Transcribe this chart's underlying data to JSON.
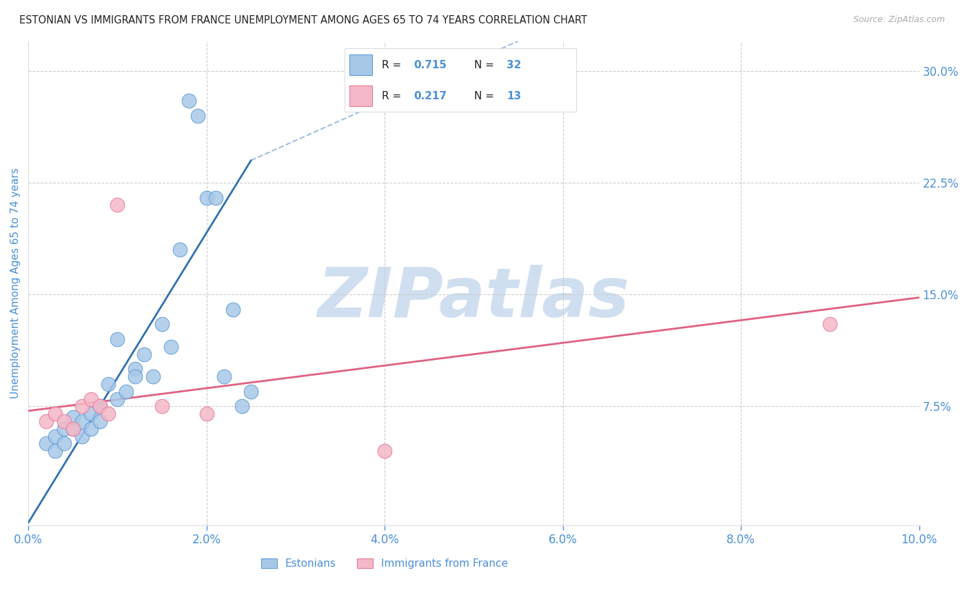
{
  "title": "ESTONIAN VS IMMIGRANTS FROM FRANCE UNEMPLOYMENT AMONG AGES 65 TO 74 YEARS CORRELATION CHART",
  "source": "Source: ZipAtlas.com",
  "ylabel": "Unemployment Among Ages 65 to 74 years",
  "xlim": [
    0.0,
    0.1
  ],
  "ylim": [
    -0.005,
    0.32
  ],
  "xticks": [
    0.0,
    0.02,
    0.04,
    0.06,
    0.08,
    0.1
  ],
  "yticks_right": [
    0.075,
    0.15,
    0.225,
    0.3
  ],
  "ytick_labels_right": [
    "7.5%",
    "15.0%",
    "22.5%",
    "30.0%"
  ],
  "xtick_labels": [
    "0.0%",
    "2.0%",
    "4.0%",
    "6.0%",
    "8.0%",
    "10.0%"
  ],
  "color_blue": "#a8c8e8",
  "color_blue_line": "#5b9bd5",
  "color_pink": "#f4b8c8",
  "color_pink_line": "#e87898",
  "color_trend_blue": "#3070b0",
  "color_trend_pink": "#e06080",
  "color_axis_labels": "#4a90d9",
  "color_grid": "#cccccc",
  "watermark_color": "#d0dff0",
  "blue_scatter_x": [
    0.002,
    0.003,
    0.003,
    0.004,
    0.004,
    0.005,
    0.005,
    0.006,
    0.006,
    0.007,
    0.007,
    0.008,
    0.008,
    0.009,
    0.01,
    0.01,
    0.011,
    0.012,
    0.012,
    0.013,
    0.014,
    0.015,
    0.016,
    0.017,
    0.018,
    0.019,
    0.02,
    0.021,
    0.022,
    0.023,
    0.024,
    0.025
  ],
  "blue_scatter_y": [
    0.05,
    0.045,
    0.055,
    0.06,
    0.05,
    0.06,
    0.068,
    0.055,
    0.065,
    0.07,
    0.06,
    0.065,
    0.075,
    0.09,
    0.08,
    0.12,
    0.085,
    0.1,
    0.095,
    0.11,
    0.095,
    0.13,
    0.115,
    0.18,
    0.28,
    0.27,
    0.215,
    0.215,
    0.095,
    0.14,
    0.075,
    0.085
  ],
  "pink_scatter_x": [
    0.002,
    0.003,
    0.004,
    0.005,
    0.006,
    0.007,
    0.008,
    0.009,
    0.01,
    0.015,
    0.02,
    0.04,
    0.09
  ],
  "pink_scatter_y": [
    0.065,
    0.07,
    0.065,
    0.06,
    0.075,
    0.08,
    0.075,
    0.07,
    0.21,
    0.075,
    0.07,
    0.045,
    0.13
  ],
  "blue_trend_x1": 0.0,
  "blue_trend_y1": -0.003,
  "blue_trend_x2": 0.025,
  "blue_trend_y2": 0.24,
  "blue_trend_ext_x1": 0.025,
  "blue_trend_ext_y1": 0.24,
  "blue_trend_ext_x2": 0.055,
  "blue_trend_ext_y2": 0.32,
  "pink_trend_x1": 0.0,
  "pink_trend_y1": 0.072,
  "pink_trend_x2": 0.1,
  "pink_trend_y2": 0.148,
  "figsize": [
    14.06,
    8.92
  ],
  "dpi": 100,
  "background_color": "#ffffff"
}
